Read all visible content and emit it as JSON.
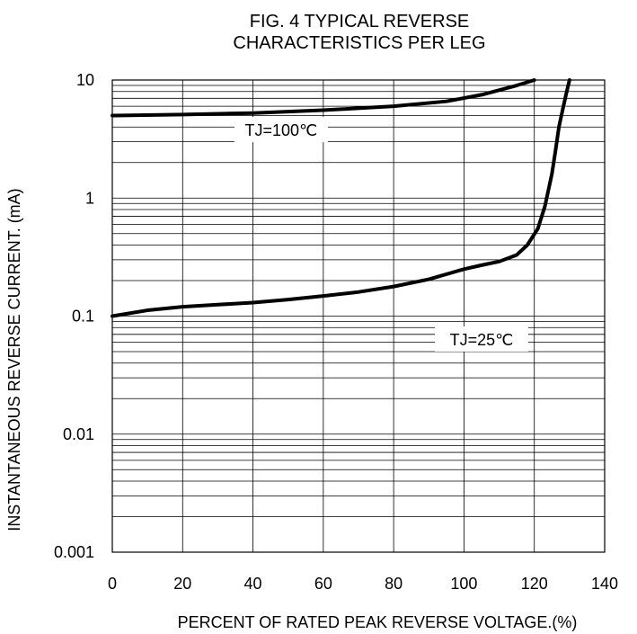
{
  "chart_data": {
    "type": "line",
    "title_lines": [
      "FIG. 4 TYPICAL REVERSE",
      "CHARACTERISTICS PER LEG"
    ],
    "xlabel": "PERCENT OF RATED PEAK REVERSE VOLTAGE.(%)",
    "ylabel": "INSTANTANEOUS REVERSE CURRENT. (mA)",
    "xlim": [
      0,
      140
    ],
    "ylim": [
      0.001,
      10
    ],
    "y_scale": "log",
    "grid": true,
    "x_ticks": [
      0,
      20,
      40,
      60,
      80,
      100,
      120,
      140
    ],
    "x_tick_labels": [
      "0",
      "20",
      "40",
      "60",
      "80",
      "100",
      "120",
      "140"
    ],
    "y_ticks": [
      0.001,
      0.01,
      0.1,
      1,
      10
    ],
    "y_tick_labels": [
      "0.001",
      "0.01",
      "0.1",
      "1",
      "10"
    ],
    "series": [
      {
        "name": "TJ=100℃",
        "points": [
          [
            0,
            5.0
          ],
          [
            20,
            5.1
          ],
          [
            40,
            5.25
          ],
          [
            60,
            5.55
          ],
          [
            80,
            6.0
          ],
          [
            95,
            6.6
          ],
          [
            105,
            7.5
          ],
          [
            115,
            9.0
          ],
          [
            120,
            10.0
          ]
        ]
      },
      {
        "name": "TJ=25℃",
        "points": [
          [
            0,
            0.1
          ],
          [
            10,
            0.112
          ],
          [
            20,
            0.12
          ],
          [
            30,
            0.125
          ],
          [
            40,
            0.13
          ],
          [
            50,
            0.138
          ],
          [
            60,
            0.148
          ],
          [
            70,
            0.16
          ],
          [
            80,
            0.178
          ],
          [
            90,
            0.205
          ],
          [
            100,
            0.25
          ],
          [
            105,
            0.27
          ],
          [
            110,
            0.29
          ],
          [
            115,
            0.33
          ],
          [
            118,
            0.4
          ],
          [
            121,
            0.55
          ],
          [
            123,
            0.85
          ],
          [
            125,
            1.6
          ],
          [
            126,
            2.5
          ],
          [
            127,
            4.0
          ],
          [
            128,
            5.5
          ],
          [
            129,
            7.5
          ],
          [
            130,
            10.0
          ]
        ]
      }
    ],
    "annotations": [
      {
        "text": "TJ=100℃",
        "x": 48,
        "y": 3.8
      },
      {
        "text": "TJ=25℃",
        "x": 105,
        "y": 0.064
      }
    ]
  }
}
